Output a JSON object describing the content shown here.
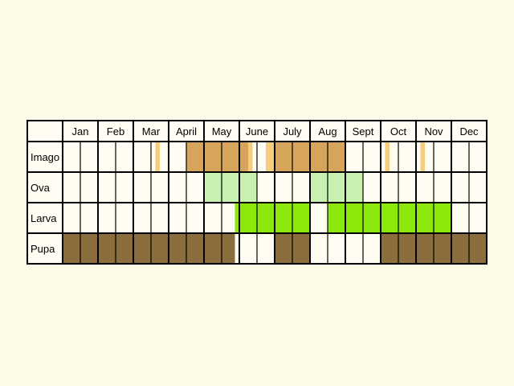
{
  "chart_data": {
    "type": "table",
    "months": [
      "Jan",
      "Feb",
      "Mar",
      "April",
      "May",
      "June",
      "July",
      "Aug",
      "Sept",
      "Oct",
      "Nov",
      "Dec"
    ],
    "rows": [
      {
        "label": "Imago",
        "segments": [
          {
            "start": 5.25,
            "end": 5.5,
            "color": "#f5cd7f"
          },
          {
            "start": 7,
            "end": 10.5,
            "color": "#d7a45c"
          },
          {
            "start": 10.5,
            "end": 10.75,
            "color": "#f5cd7f"
          },
          {
            "start": 11.5,
            "end": 12,
            "color": "#f5cd7f"
          },
          {
            "start": 12,
            "end": 16,
            "color": "#d7a45c"
          },
          {
            "start": 18.25,
            "end": 18.5,
            "color": "#f5cd7f"
          },
          {
            "start": 20.25,
            "end": 20.5,
            "color": "#f5cd7f"
          }
        ]
      },
      {
        "label": "Ova",
        "segments": [
          {
            "start": 8,
            "end": 11,
            "color": "#c8f0b0"
          },
          {
            "start": 14,
            "end": 17,
            "color": "#c8f0b0"
          }
        ]
      },
      {
        "label": "Larva",
        "segments": [
          {
            "start": 9.75,
            "end": 14,
            "color": "#8be80a"
          },
          {
            "start": 15,
            "end": 22,
            "color": "#8be80a"
          }
        ]
      },
      {
        "label": "Pupa",
        "segments": [
          {
            "start": 0,
            "end": 9.75,
            "color": "#8c6d3d"
          },
          {
            "start": 12,
            "end": 14,
            "color": "#8c6d3d"
          },
          {
            "start": 18,
            "end": 24,
            "color": "#8c6d3d"
          }
        ]
      }
    ]
  }
}
